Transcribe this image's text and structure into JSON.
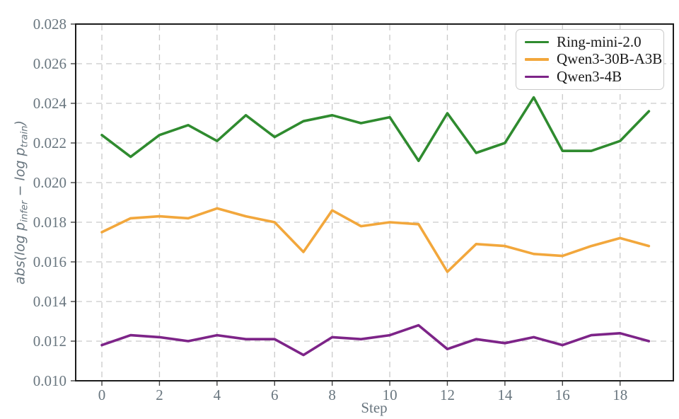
{
  "chart_data": {
    "type": "line",
    "x": [
      0,
      1,
      2,
      3,
      4,
      5,
      6,
      7,
      8,
      9,
      10,
      11,
      12,
      13,
      14,
      15,
      16,
      17,
      18,
      19
    ],
    "series": [
      {
        "name": "Ring-mini-2.0",
        "color": "#2f8b2f",
        "values": [
          0.0224,
          0.0213,
          0.0224,
          0.0229,
          0.0221,
          0.0234,
          0.0223,
          0.0231,
          0.0234,
          0.023,
          0.0233,
          0.0211,
          0.0235,
          0.0215,
          0.022,
          0.0243,
          0.0216,
          0.0216,
          0.0221,
          0.0236
        ]
      },
      {
        "name": "Qwen3-30B-A3B",
        "color": "#f2a73c",
        "values": [
          0.0175,
          0.0182,
          0.0183,
          0.0182,
          0.0187,
          0.0183,
          0.018,
          0.0165,
          0.0186,
          0.0178,
          0.018,
          0.0179,
          0.0155,
          0.0169,
          0.0168,
          0.0164,
          0.0163,
          0.0168,
          0.0172,
          0.0168
        ]
      },
      {
        "name": "Qwen3-4B",
        "color": "#7d2488",
        "values": [
          0.0118,
          0.0123,
          0.0122,
          0.012,
          0.0123,
          0.0121,
          0.0121,
          0.0113,
          0.0122,
          0.0121,
          0.0123,
          0.0128,
          0.0116,
          0.0121,
          0.0119,
          0.0122,
          0.0118,
          0.0123,
          0.0124,
          0.012
        ]
      }
    ],
    "title": "",
    "xlabel": "Step",
    "ylabel": "abs(log p_infer − log p_train)",
    "ylabel_parts": [
      {
        "text": "abs(log "
      },
      {
        "text": "p"
      },
      {
        "text": "infer",
        "sub": true
      },
      {
        "text": " − log "
      },
      {
        "text": "p"
      },
      {
        "text": "train",
        "sub": true
      },
      {
        "text": ")"
      }
    ],
    "xlim": [
      -0.91,
      19.85
    ],
    "ylim": [
      0.01,
      0.028
    ],
    "xticks": [
      0,
      2,
      4,
      6,
      8,
      10,
      12,
      14,
      16,
      18
    ],
    "yticks": [
      0.01,
      0.012,
      0.014,
      0.016,
      0.018,
      0.02,
      0.022,
      0.024,
      0.026,
      0.028
    ],
    "ytick_decimals": 3,
    "grid": true,
    "grid_style": "dashed",
    "legend_position": "upper right",
    "legend_entries": [
      "Ring-mini-2.0",
      "Qwen3-30B-A3B",
      "Qwen3-4B"
    ]
  },
  "colors": {
    "background": "#ffffff",
    "grid": "#c9c9c9",
    "spine": "#1c1c1c",
    "tick_mark": "#444444",
    "tick_label": "#69767f",
    "axis_label": "#69767f",
    "legend_border": "#c9c9c9",
    "legend_text": "#1a1a1a"
  }
}
